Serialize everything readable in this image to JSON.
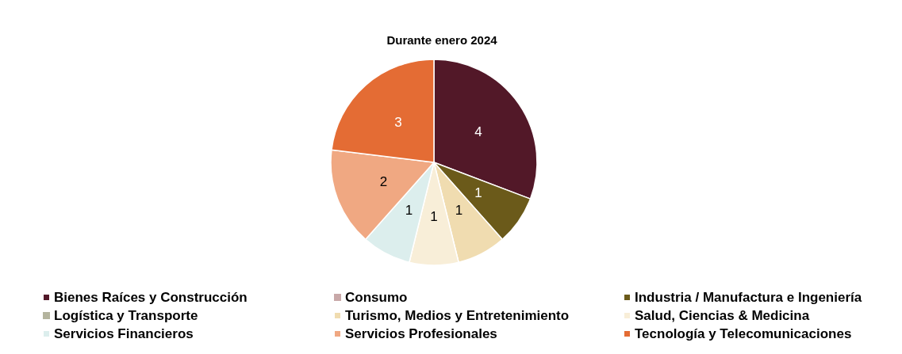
{
  "chart_data": {
    "type": "pie",
    "title": "Durante enero 2024",
    "categories": [
      "Bienes Raíces y Construcción",
      "Consumo",
      "Industria / Manufactura e Ingeniería",
      "Logística y Transporte",
      "Turismo, Medios y Entretenimiento",
      "Salud, Ciencias & Medicina",
      "Servicios Financieros",
      "Servicios Profesionales",
      "Tecnología y Telecomunicaciones"
    ],
    "values": [
      4,
      0,
      1,
      0,
      1,
      1,
      1,
      2,
      3
    ],
    "value_labels": [
      "4",
      null,
      "1",
      null,
      "1",
      "1",
      "1",
      "2",
      "3"
    ],
    "colors": [
      "#521828",
      "#c8a8a8",
      "#6b5a1a",
      "#b4b49e",
      "#f0dcb0",
      "#f8eed8",
      "#dceeed",
      "#f0a882",
      "#e46c34"
    ],
    "legend": "bottom"
  }
}
